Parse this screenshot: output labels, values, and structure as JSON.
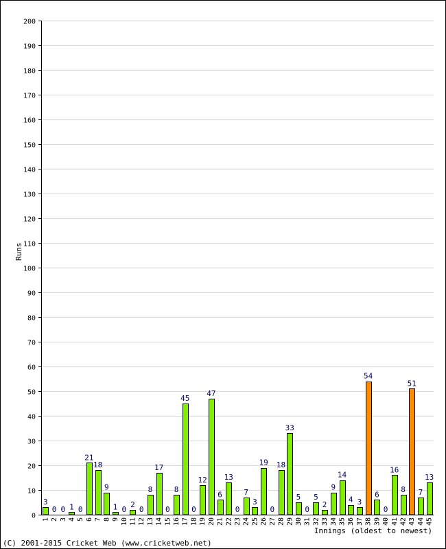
{
  "chart_data": {
    "type": "bar",
    "title": "",
    "xlabel": "Innings (oldest to newest)",
    "ylabel": "Runs",
    "ylim": [
      0,
      200
    ],
    "ytick_step": 10,
    "grid": true,
    "categories": [
      "1",
      "2",
      "3",
      "4",
      "5",
      "6",
      "7",
      "8",
      "9",
      "10",
      "11",
      "12",
      "13",
      "14",
      "15",
      "16",
      "17",
      "18",
      "19",
      "20",
      "21",
      "22",
      "23",
      "24",
      "25",
      "26",
      "27",
      "28",
      "29",
      "30",
      "31",
      "32",
      "33",
      "34",
      "35",
      "36",
      "37",
      "38",
      "39",
      "40",
      "41",
      "42",
      "43",
      "44",
      "45"
    ],
    "values": [
      3,
      0,
      0,
      1,
      0,
      21,
      18,
      9,
      1,
      0,
      2,
      0,
      8,
      17,
      0,
      8,
      45,
      0,
      12,
      47,
      6,
      13,
      0,
      7,
      3,
      19,
      0,
      18,
      33,
      5,
      0,
      5,
      2,
      9,
      14,
      4,
      3,
      54,
      6,
      0,
      16,
      8,
      51,
      7,
      13
    ],
    "highlight_threshold": 50,
    "colors": {
      "normal_bar": "#80f000",
      "fifty_bar": "#ff8c00",
      "bar_outline": "#000000",
      "data_label": "#000066",
      "grid": "#d8d8d8"
    }
  },
  "footer": "(C) 2001-2015 Cricket Web (www.cricketweb.net)"
}
